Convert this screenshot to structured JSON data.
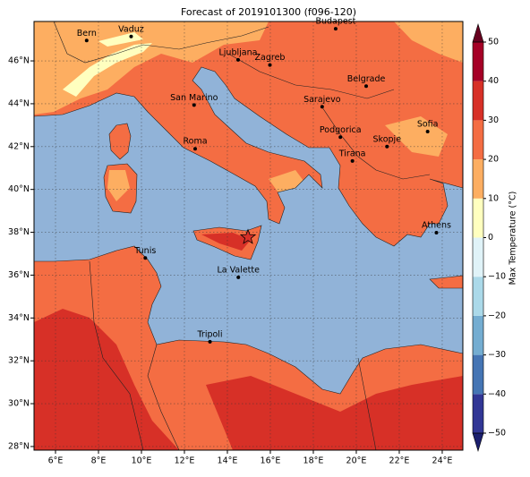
{
  "chart_data": {
    "type": "map",
    "title": "Forecast of 2019101300 (f096-120)",
    "xlim": [
      5,
      24.96
    ],
    "ylim": [
      27.83,
      47.84
    ],
    "xticks": [
      {
        "value": 6,
        "label": "6°E"
      },
      {
        "value": 8,
        "label": "8°E"
      },
      {
        "value": 10,
        "label": "10°E"
      },
      {
        "value": 12,
        "label": "12°E"
      },
      {
        "value": 14,
        "label": "14°E"
      },
      {
        "value": 16,
        "label": "16°E"
      },
      {
        "value": 18,
        "label": "18°E"
      },
      {
        "value": 20,
        "label": "20°E"
      },
      {
        "value": 22,
        "label": "22°E"
      },
      {
        "value": 24,
        "label": "24°E"
      }
    ],
    "yticks": [
      {
        "value": 28,
        "label": "28°N"
      },
      {
        "value": 30,
        "label": "30°N"
      },
      {
        "value": 32,
        "label": "32°N"
      },
      {
        "value": 34,
        "label": "34°N"
      },
      {
        "value": 36,
        "label": "36°N"
      },
      {
        "value": 38,
        "label": "38°N"
      },
      {
        "value": 40,
        "label": "40°N"
      },
      {
        "value": 42,
        "label": "42°N"
      },
      {
        "value": 44,
        "label": "44°N"
      },
      {
        "value": 46,
        "label": "46°N"
      }
    ],
    "grid": true,
    "cities": [
      {
        "name": "Bern",
        "lon": 7.45,
        "lat": 46.95
      },
      {
        "name": "Vaduz",
        "lon": 9.52,
        "lat": 47.14
      },
      {
        "name": "Budapest",
        "lon": 19.04,
        "lat": 47.5
      },
      {
        "name": "Ljubljana",
        "lon": 14.5,
        "lat": 46.05
      },
      {
        "name": "Zagreb",
        "lon": 15.98,
        "lat": 45.81
      },
      {
        "name": "Belgrade",
        "lon": 20.46,
        "lat": 44.82
      },
      {
        "name": "Sarajevo",
        "lon": 18.41,
        "lat": 43.86
      },
      {
        "name": "San Marino",
        "lon": 12.45,
        "lat": 43.94
      },
      {
        "name": "Roma",
        "lon": 12.5,
        "lat": 41.9
      },
      {
        "name": "Podgorica",
        "lon": 19.26,
        "lat": 42.44
      },
      {
        "name": "Skopje",
        "lon": 21.43,
        "lat": 42.0
      },
      {
        "name": "Sofia",
        "lon": 23.32,
        "lat": 42.7
      },
      {
        "name": "Tirana",
        "lon": 19.82,
        "lat": 41.33
      },
      {
        "name": "Athens",
        "lon": 23.73,
        "lat": 37.98
      },
      {
        "name": "Tunis",
        "lon": 10.18,
        "lat": 36.8
      },
      {
        "name": "La Valette",
        "lon": 14.51,
        "lat": 35.9
      },
      {
        "name": "Tripoli",
        "lon": 13.19,
        "lat": 32.89
      }
    ],
    "marker": {
      "lon": 14.96,
      "lat": 37.77,
      "color": "#d73027"
    },
    "colorbar": {
      "label": "Max Temperature (°C)",
      "lim": [
        -50,
        50
      ],
      "ticks": [
        {
          "value": -50,
          "label": "−50"
        },
        {
          "value": -40,
          "label": "−40"
        },
        {
          "value": -30,
          "label": "−30"
        },
        {
          "value": -20,
          "label": "−20"
        },
        {
          "value": -10,
          "label": "−10"
        },
        0,
        10,
        20,
        30,
        40,
        50
      ],
      "colors": [
        "#313695",
        "#4575b4",
        "#74add1",
        "#abd9e9",
        "#e0f3f8",
        "#ffffbf",
        "#fdae61",
        "#f46d43",
        "#d73027",
        "#a50026"
      ],
      "under": "#1b1f6e",
      "over": "#67001f"
    }
  }
}
